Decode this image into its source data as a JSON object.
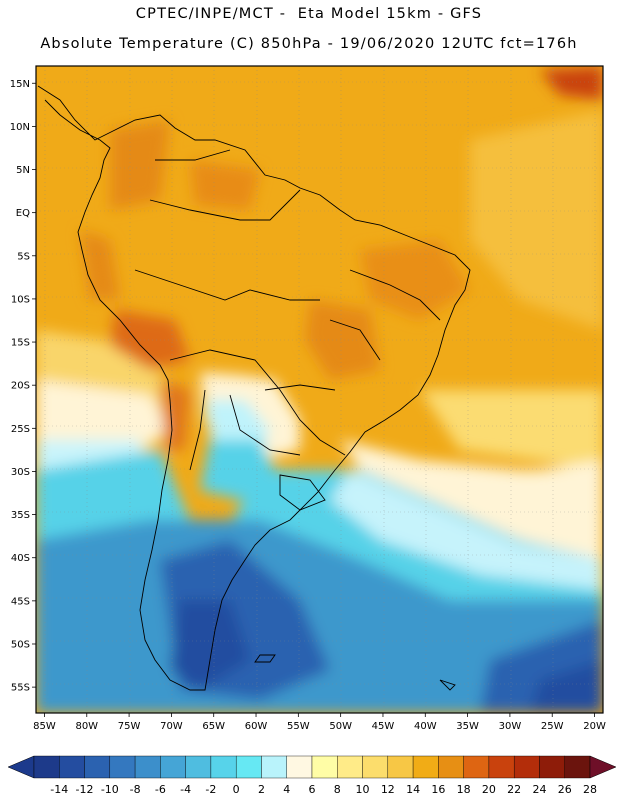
{
  "header": {
    "line1": "CPTEC/INPE/MCT -  Eta Model 15km - GFS",
    "line2": "Absolute Temperature (C) 850hPa - 19/06/2020 12UTC fct=176h"
  },
  "map": {
    "lon_labels": [
      "85W",
      "80W",
      "75W",
      "70W",
      "65W",
      "60W",
      "55W",
      "50W",
      "45W",
      "40W",
      "35W",
      "30W",
      "25W",
      "20W"
    ],
    "lat_labels": [
      "15N",
      "10N",
      "5N",
      "EQ",
      "5S",
      "10S",
      "15S",
      "20S",
      "25S",
      "30S",
      "35S",
      "40S",
      "45S",
      "50S",
      "55S"
    ],
    "lon_values": [
      -85,
      -80,
      -75,
      -70,
      -65,
      -60,
      -55,
      -50,
      -45,
      -40,
      -35,
      -30,
      -25,
      -20
    ],
    "lat_values": [
      15,
      10,
      5,
      0,
      -5,
      -10,
      -15,
      -20,
      -25,
      -30,
      -35,
      -40,
      -45,
      -50,
      -55
    ],
    "lon_range": [
      -86,
      -19
    ],
    "lat_range": [
      -58,
      17
    ]
  },
  "colorbar": {
    "labels": [
      "-14",
      "-12",
      "-10",
      "-8",
      "-6",
      "-4",
      "-2",
      "0",
      "2",
      "4",
      "6",
      "8",
      "10",
      "12",
      "14",
      "16",
      "18",
      "20",
      "22",
      "24",
      "26",
      "28"
    ],
    "colors": [
      "#1d3a8a",
      "#244da0",
      "#2b62b0",
      "#3478bf",
      "#3c8fcb",
      "#45a5d6",
      "#4fbde0",
      "#57d3ea",
      "#66e8f3",
      "#b9f3fb",
      "#fff8e2",
      "#fffda6",
      "#ffeb88",
      "#fcdd6c",
      "#f7c745",
      "#f1ac16",
      "#e78f14",
      "#de6512",
      "#c9420d",
      "#b32d0a",
      "#8e1c09",
      "#6b140d"
    ],
    "under_color": "#1c3a8c",
    "over_color": "#6e0f28"
  }
}
